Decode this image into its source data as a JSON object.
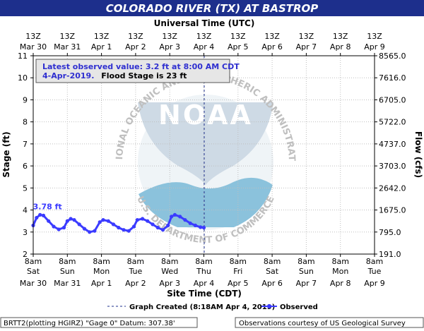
{
  "title": "COLORADO RIVER (TX) AT BASTROP",
  "top_axis_title": "Universal Time (UTC)",
  "top_ticks": [
    [
      "13Z",
      "Mar 30"
    ],
    [
      "13Z",
      "Mar 31"
    ],
    [
      "13Z",
      "Apr 1"
    ],
    [
      "13Z",
      "Apr 2"
    ],
    [
      "13Z",
      "Apr 3"
    ],
    [
      "13Z",
      "Apr 4"
    ],
    [
      "13Z",
      "Apr 5"
    ],
    [
      "13Z",
      "Apr 6"
    ],
    [
      "13Z",
      "Apr 7"
    ],
    [
      "13Z",
      "Apr 8"
    ],
    [
      "13Z",
      "Apr 9"
    ]
  ],
  "bottom_ticks": [
    [
      "8am",
      "Sat",
      "Mar 30"
    ],
    [
      "8am",
      "Sun",
      "Mar 31"
    ],
    [
      "8am",
      "Mon",
      "Apr 1"
    ],
    [
      "8am",
      "Tue",
      "Apr 2"
    ],
    [
      "8am",
      "Wed",
      "Apr 3"
    ],
    [
      "8am",
      "Thu",
      "Apr 4"
    ],
    [
      "8am",
      "Fri",
      "Apr 5"
    ],
    [
      "8am",
      "Sat",
      "Apr 6"
    ],
    [
      "8am",
      "Sun",
      "Apr 7"
    ],
    [
      "8am",
      "Mon",
      "Apr 8"
    ],
    [
      "8am",
      "Tue",
      "Apr 9"
    ]
  ],
  "bottom_axis_title": "Site Time (CDT)",
  "left_axis_title": "Stage (ft)",
  "right_axis_title": "Flow (cfs)",
  "annotation": {
    "line1": "Latest observed value: 3.2  ft at 8:00 AM CDT",
    "line2_date": "4-Apr-2019.",
    "line2_rest": "Flood Stage is 23  ft"
  },
  "peak_label": "3.78 ft",
  "watermark": {
    "logo_text": "NOAA",
    "ring_top": "NATIONAL OCEANIC AND ATMOSPHERIC ADMINISTRATION",
    "ring_bottom": "U.S. DEPARTMENT OF COMMERCE"
  },
  "legend": {
    "created_label": "Graph Created (8:18AM Apr 4, 2019)",
    "observed_label": "Observed"
  },
  "footer_left": "BRTT2(plotting HGIRZ) \"Gage 0\" Datum: 307.38'",
  "footer_right": "Observations courtesy of US Geological Survey",
  "colors": {
    "title_bg": "#1d2f8c",
    "title_text": "#ffffff",
    "observed": "#3b3bff",
    "grid": "#bfbfbf",
    "watermark_blue": "#7fbcd9",
    "watermark_gray": "#b9b9b9"
  },
  "chart_data": {
    "type": "line",
    "x_unit": "days since 8am CDT Sat Mar 30",
    "xlim": [
      0,
      10
    ],
    "ylim": [
      2,
      11
    ],
    "y_ticks": [
      2,
      3,
      4,
      5,
      6,
      7,
      8,
      9,
      10,
      11
    ],
    "right_ticks": [
      "191.0",
      "795.0",
      "1675.0",
      "2642.0",
      "3703.0",
      "4737.0",
      "5722.0",
      "6705.0",
      "7616.0",
      "8565.0"
    ],
    "graph_created_x": 5.01,
    "series": [
      {
        "name": "Observed",
        "x": [
          0,
          0.1,
          0.2,
          0.3,
          0.45,
          0.6,
          0.75,
          0.9,
          1.0,
          1.1,
          1.2,
          1.35,
          1.5,
          1.65,
          1.8,
          1.95,
          2.05,
          2.2,
          2.35,
          2.5,
          2.65,
          2.8,
          2.95,
          3.05,
          3.2,
          3.35,
          3.5,
          3.65,
          3.8,
          3.95,
          4.05,
          4.15,
          4.3,
          4.45,
          4.6,
          4.75,
          4.9,
          5.0
        ],
        "y": [
          3.3,
          3.65,
          3.78,
          3.75,
          3.5,
          3.25,
          3.12,
          3.2,
          3.5,
          3.6,
          3.55,
          3.35,
          3.15,
          3.0,
          3.05,
          3.45,
          3.55,
          3.5,
          3.35,
          3.2,
          3.1,
          3.05,
          3.25,
          3.55,
          3.6,
          3.5,
          3.35,
          3.2,
          3.1,
          3.3,
          3.7,
          3.78,
          3.7,
          3.55,
          3.4,
          3.3,
          3.22,
          3.2
        ]
      }
    ]
  }
}
